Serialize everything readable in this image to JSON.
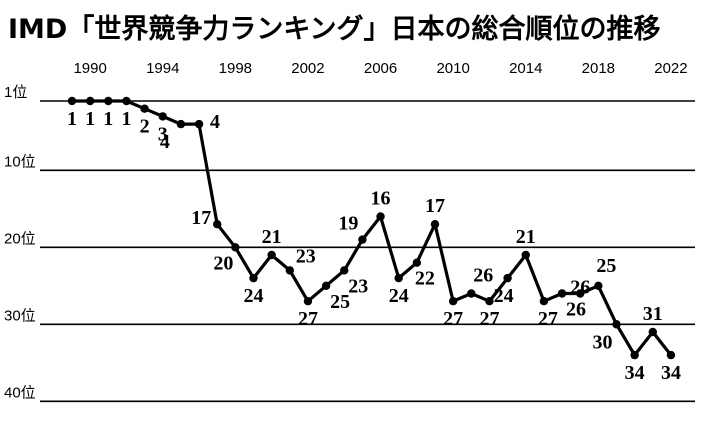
{
  "chart_data": {
    "type": "line",
    "title": "IMD「世界競争力ランキング」日本の総合順位の推移",
    "xlabel": "",
    "ylabel": "",
    "x_ticks": [
      "1990",
      "1994",
      "1998",
      "2002",
      "2006",
      "2010",
      "2014",
      "2018",
      "2022"
    ],
    "y_ticks": [
      "1位",
      "10位",
      "20位",
      "30位",
      "40位"
    ],
    "y_tick_values": [
      1,
      10,
      20,
      30,
      40
    ],
    "ylim": [
      1,
      40
    ],
    "y_inverted": true,
    "grid": true,
    "x": [
      1989,
      1990,
      1991,
      1992,
      1993,
      1994,
      1995,
      1996,
      1997,
      1998,
      1999,
      2000,
      2001,
      2002,
      2003,
      2004,
      2005,
      2006,
      2007,
      2008,
      2009,
      2010,
      2011,
      2012,
      2013,
      2014,
      2015,
      2016,
      2017,
      2018,
      2019,
      2020,
      2021,
      2022
    ],
    "values": [
      1,
      1,
      1,
      1,
      2,
      3,
      4,
      4,
      17,
      20,
      24,
      21,
      23,
      27,
      25,
      23,
      19,
      16,
      24,
      22,
      17,
      27,
      26,
      27,
      24,
      21,
      27,
      26,
      26,
      25,
      30,
      34,
      31,
      34
    ],
    "data_labels": [
      "1",
      "1",
      "1",
      "1",
      "2",
      "3",
      "4",
      "4",
      "17",
      "20",
      "24",
      "21",
      "23",
      "27",
      "25",
      "23",
      "19",
      "16",
      "24",
      "22",
      "17",
      "27",
      "26",
      "27",
      "24",
      "21",
      "27",
      "26",
      "26",
      "25",
      "30",
      "34",
      "31",
      "34"
    ],
    "line_color": "#000000"
  }
}
